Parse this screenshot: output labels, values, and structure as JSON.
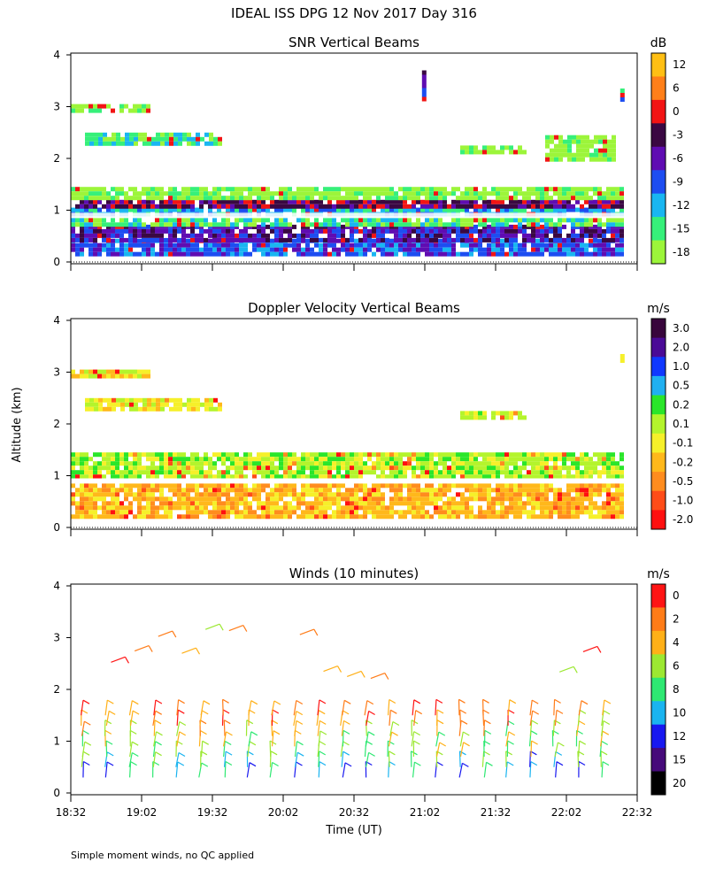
{
  "figure": {
    "title": "IDEAL ISS DPG  12 Nov 2017 Day 316",
    "footnote": "Simple moment winds, no QC applied",
    "ylabel": "Altitude (km)",
    "xlabel": "Time (UT)",
    "time_ticks": [
      "18:32",
      "19:02",
      "19:32",
      "20:02",
      "20:32",
      "21:02",
      "21:32",
      "22:02",
      "22:32"
    ]
  },
  "colors": {
    "snr_scale": [
      "#9cf53a",
      "#36f07a",
      "#19b6f1",
      "#1d4df1",
      "#5f0cb2",
      "#3a0842",
      "#f21414",
      "#ff7f19",
      "#ffbf14"
    ],
    "doppler_scale": [
      "#ff1010",
      "#ff4c18",
      "#ff8c1e",
      "#ffb81b",
      "#f6f02a",
      "#b4f42c",
      "#2ae62a",
      "#20b0f1",
      "#1038ff",
      "#4a0a96",
      "#38053c"
    ],
    "wind_scale": [
      "#000000",
      "#460a7a",
      "#1818f0",
      "#1ab4f0",
      "#2ee872",
      "#9ce832",
      "#ffb018",
      "#ff7c18",
      "#ff1414"
    ]
  },
  "chart_data": [
    {
      "type": "heatmap",
      "title": "SNR Vertical Beams",
      "units": "dB",
      "ylim": [
        0,
        4
      ],
      "yticks": [
        0,
        1,
        2,
        3,
        4
      ],
      "colorbar_ticks": [
        "12",
        "6",
        "0",
        "-3",
        "-6",
        "-9",
        "-12",
        "-15",
        "-18"
      ],
      "colorbar_values": [
        -18,
        -15,
        -12,
        -9,
        -6,
        -3,
        0,
        6,
        12
      ],
      "bands": [
        {
          "t0": 0.0,
          "t1": 3.9,
          "h0": 0.18,
          "h1": 0.45,
          "level": 3
        },
        {
          "t0": 0.0,
          "t1": 3.9,
          "h0": 0.45,
          "h1": 0.72,
          "level": 4
        },
        {
          "t0": 0.0,
          "t1": 3.9,
          "h0": 0.72,
          "h1": 0.85,
          "level": 1
        },
        {
          "t0": 0.0,
          "t1": 3.9,
          "h0": 0.95,
          "h1": 1.05,
          "level": 2
        },
        {
          "t0": 0.0,
          "t1": 3.9,
          "h0": 1.05,
          "h1": 1.2,
          "level": 5
        },
        {
          "t0": 0.0,
          "t1": 3.9,
          "h0": 1.2,
          "h1": 1.45,
          "level": 0
        },
        {
          "t0": 0.1,
          "t1": 1.05,
          "h0": 2.3,
          "h1": 2.5,
          "level": 1
        },
        {
          "t0": 0.0,
          "t1": 0.55,
          "h0": 2.93,
          "h1": 3.05,
          "level": 0
        },
        {
          "t0": 2.75,
          "t1": 3.2,
          "h0": 2.15,
          "h1": 2.25,
          "level": 0
        },
        {
          "t0": 3.35,
          "t1": 3.85,
          "h0": 2.0,
          "h1": 2.45,
          "level": 0
        },
        {
          "t0": 2.48,
          "t1": 2.5,
          "h0": 3.1,
          "h1": 3.7,
          "level": 4
        },
        {
          "t0": 3.88,
          "t1": 3.9,
          "h0": 3.15,
          "h1": 3.35,
          "level": 2
        }
      ]
    },
    {
      "type": "heatmap",
      "title": "Doppler Velocity Vertical Beams",
      "units": "m/s",
      "ylim": [
        0,
        4
      ],
      "yticks": [
        0,
        1,
        2,
        3,
        4
      ],
      "colorbar_ticks": [
        "3.0",
        "2.0",
        "1.0",
        "0.5",
        "0.2",
        "0.1",
        "-0.1",
        "-0.2",
        "-0.5",
        "-1.0",
        "-2.0"
      ],
      "colorbar_values": [
        -2.0,
        -1.0,
        -0.5,
        -0.2,
        -0.1,
        0.1,
        0.2,
        0.5,
        1.0,
        2.0,
        3.0
      ],
      "bands": [
        {
          "t0": 0.0,
          "t1": 3.9,
          "h0": 0.18,
          "h1": 0.85,
          "level": 3
        },
        {
          "t0": 0.0,
          "t1": 3.9,
          "h0": 0.95,
          "h1": 1.45,
          "level": 5
        },
        {
          "t0": 0.1,
          "t1": 1.05,
          "h0": 2.3,
          "h1": 2.5,
          "level": 4
        },
        {
          "t0": 0.0,
          "t1": 0.55,
          "h0": 2.93,
          "h1": 3.05,
          "level": 4
        },
        {
          "t0": 2.75,
          "t1": 3.2,
          "h0": 2.15,
          "h1": 2.25,
          "level": 5
        },
        {
          "t0": 3.88,
          "t1": 3.9,
          "h0": 3.2,
          "h1": 3.35,
          "level": 3
        }
      ]
    },
    {
      "type": "barbs",
      "title": "Winds (10 minutes)",
      "units": "m/s",
      "ylim": [
        0,
        4
      ],
      "yticks": [
        0,
        1,
        2,
        3,
        4
      ],
      "colorbar_ticks": [
        "0",
        "2",
        "4",
        "6",
        "8",
        "10",
        "12",
        "15",
        "20"
      ],
      "colorbar_values": [
        0,
        2,
        4,
        6,
        8,
        10,
        12,
        15,
        20
      ],
      "interval_hours": 0.1667,
      "first_time_offset_hours": 0.08,
      "profile_heights_km": [
        0.3,
        0.5,
        0.7,
        0.9,
        1.1,
        1.3,
        1.5
      ]
    }
  ]
}
